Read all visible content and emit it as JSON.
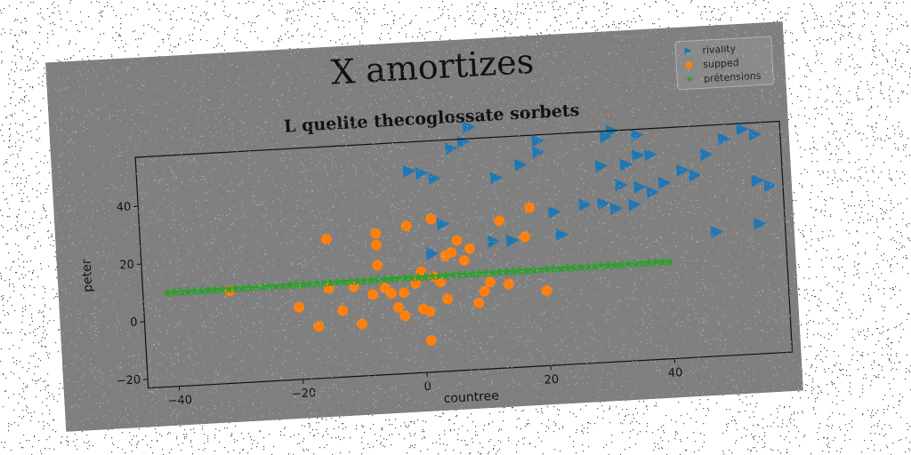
{
  "chart_data": {
    "type": "scatter",
    "title": "X amortizes",
    "subtitle": "L quelite thecoglossate sorbets",
    "xlabel": "countree",
    "ylabel": "peter",
    "xlim": [
      -45,
      59
    ],
    "ylim": [
      -23,
      57
    ],
    "xticks": [
      -40,
      -20,
      0,
      20,
      40
    ],
    "yticks": [
      -20,
      0,
      20,
      40
    ],
    "grid": false,
    "legend_position": "top-right",
    "series": [
      {
        "name": "rivality",
        "marker": "triangle-right",
        "color": "#1f77b4",
        "points": [
          [
            -1,
            47
          ],
          [
            1,
            46
          ],
          [
            3,
            44
          ],
          [
            6,
            54
          ],
          [
            8,
            56
          ],
          [
            9,
            61
          ],
          [
            13,
            43
          ],
          [
            17,
            47
          ],
          [
            20,
            55
          ],
          [
            20,
            51
          ],
          [
            4,
            28
          ],
          [
            2,
            18
          ],
          [
            12,
            21
          ],
          [
            15,
            21
          ],
          [
            22,
            30
          ],
          [
            23,
            22
          ],
          [
            27,
            32
          ],
          [
            30,
            32
          ],
          [
            32,
            30
          ],
          [
            35,
            31
          ],
          [
            33,
            38
          ],
          [
            36,
            37
          ],
          [
            38,
            35
          ],
          [
            40,
            38
          ],
          [
            43,
            42
          ],
          [
            45,
            40
          ],
          [
            47,
            47
          ],
          [
            50,
            52
          ],
          [
            53,
            55
          ],
          [
            55,
            53
          ],
          [
            30,
            45
          ],
          [
            34,
            45
          ],
          [
            36,
            48
          ],
          [
            38,
            48
          ],
          [
            31,
            55
          ],
          [
            32,
            57
          ],
          [
            36,
            55
          ],
          [
            55,
            37
          ],
          [
            57,
            35
          ],
          [
            48,
            20
          ],
          [
            55,
            22
          ]
        ]
      },
      {
        "name": "supped",
        "marker": "circle",
        "color": "#ff7f0e",
        "points": [
          [
            -31,
            9
          ],
          [
            -20,
            2
          ],
          [
            -17,
            -5
          ],
          [
            -15,
            25
          ],
          [
            -15,
            8
          ],
          [
            -13,
            0
          ],
          [
            -11,
            8
          ],
          [
            -10,
            -5
          ],
          [
            -8,
            5
          ],
          [
            -7,
            26
          ],
          [
            -7,
            22
          ],
          [
            -7,
            15
          ],
          [
            -6,
            7
          ],
          [
            -5,
            5
          ],
          [
            -4,
            0
          ],
          [
            -3,
            -3
          ],
          [
            -3,
            5
          ],
          [
            -2,
            28
          ],
          [
            -1,
            8
          ],
          [
            0,
            12
          ],
          [
            0,
            -1
          ],
          [
            1,
            -2
          ],
          [
            1,
            -12
          ],
          [
            2,
            10
          ],
          [
            3,
            8
          ],
          [
            4,
            17
          ],
          [
            4,
            2
          ],
          [
            5,
            18
          ],
          [
            6,
            22
          ],
          [
            7,
            15
          ],
          [
            8,
            19
          ],
          [
            9,
            0
          ],
          [
            10,
            4
          ],
          [
            11,
            7
          ],
          [
            13,
            28
          ],
          [
            14,
            6
          ],
          [
            17,
            22
          ],
          [
            18,
            32
          ],
          [
            20,
            3
          ],
          [
            2,
            30
          ]
        ]
      },
      {
        "name": "prétensions",
        "marker": "star",
        "color": "#2ca02c",
        "line": {
          "x_start": -41,
          "x_end": 40,
          "y_start": 9.5,
          "y_end": 10.6,
          "count": 75
        }
      }
    ]
  },
  "colors": {
    "figure_bg": "#7f7f7f",
    "axes_bg": "#808080",
    "page_bg": "#ffffff"
  }
}
